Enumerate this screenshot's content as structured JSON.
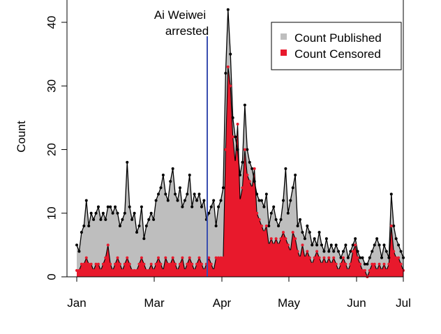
{
  "colors": {
    "published": "#bebebe",
    "censored": "#e8192c",
    "event_line": "#3a4fb0",
    "published_point": "#000000",
    "censored_point": "#e8192c"
  },
  "chart_data": {
    "type": "area",
    "title": "",
    "xlabel": "",
    "ylabel": "Count",
    "x_ticks": [
      "Jan",
      "Mar",
      "Apr",
      "May",
      "Jun",
      "Jul"
    ],
    "y_ticks": [
      "0",
      "10",
      "20",
      "30",
      "40"
    ],
    "ylim": [
      0,
      43
    ],
    "grid": false,
    "legend_position": "top-right",
    "annotation": {
      "text_line1": "Ai Weiwei",
      "text_line2": "arrested",
      "x_tick_fraction": 0.46
    },
    "series": [
      {
        "name": "Count Published",
        "values": [
          5,
          4,
          7,
          8,
          12,
          8,
          10,
          9,
          10,
          11,
          9,
          10,
          9,
          11,
          11,
          10,
          11,
          10,
          8,
          9,
          10,
          18,
          11,
          9,
          10,
          7,
          8,
          11,
          6,
          8,
          9,
          10,
          9,
          12,
          13,
          14,
          16,
          13,
          12,
          15,
          17,
          13,
          12,
          14,
          11,
          12,
          13,
          16,
          11,
          13,
          12,
          13,
          11,
          12,
          9,
          10,
          11,
          12,
          8,
          11,
          12,
          14,
          32,
          42,
          35,
          25,
          22,
          20,
          16,
          18,
          27,
          20,
          18,
          17,
          15,
          13,
          12,
          12,
          11,
          13,
          8,
          10,
          11,
          9,
          8,
          9,
          12,
          17,
          10,
          12,
          14,
          16,
          8,
          9,
          7,
          6,
          8,
          7,
          5,
          6,
          5,
          7,
          5,
          4,
          6,
          4,
          5,
          4,
          5,
          4,
          3,
          4,
          5,
          3,
          4,
          5,
          6,
          4,
          3,
          3,
          2,
          2,
          3,
          4,
          5,
          6,
          5,
          3,
          5,
          4,
          3,
          13,
          8,
          6,
          5,
          4,
          3
        ],
        "points": [
          5,
          4,
          7,
          8,
          12,
          8,
          10,
          9,
          10,
          11,
          9,
          10,
          9,
          11,
          11,
          10,
          11,
          10,
          8,
          9,
          10,
          18,
          11,
          9,
          10,
          7,
          8,
          11,
          6,
          8,
          9,
          10,
          9,
          12,
          13,
          14,
          16,
          13,
          12,
          15,
          17,
          13,
          12,
          14,
          11,
          12,
          13,
          16,
          11,
          13,
          12,
          13,
          11,
          12,
          9,
          10,
          11,
          12,
          8,
          11,
          12,
          14,
          32,
          42,
          35,
          25,
          22,
          20,
          16,
          18,
          27,
          20,
          18,
          17,
          15,
          13,
          12,
          12,
          11,
          13,
          8,
          10,
          11,
          9,
          8,
          9,
          12,
          17,
          10,
          12,
          14,
          16,
          8,
          9,
          7,
          6,
          8,
          7,
          5,
          6,
          5,
          7,
          5,
          4,
          6,
          4,
          5,
          4,
          5,
          4,
          3,
          4,
          5,
          3,
          4,
          5,
          6,
          4,
          3,
          3,
          2,
          2,
          3,
          4,
          5,
          6,
          5,
          3,
          5,
          4,
          3,
          13,
          8,
          6,
          5,
          4,
          3
        ]
      },
      {
        "name": "Count Censored",
        "values": [
          1,
          1,
          2,
          2,
          3,
          2,
          2,
          1,
          2,
          2,
          1,
          2,
          3,
          5,
          2,
          1,
          2,
          3,
          2,
          1,
          2,
          3,
          2,
          1,
          1,
          1,
          2,
          3,
          2,
          1,
          1,
          2,
          1,
          2,
          3,
          2,
          1,
          3,
          2,
          2,
          3,
          2,
          1,
          2,
          3,
          1,
          2,
          3,
          2,
          1,
          2,
          3,
          2,
          1,
          2,
          3,
          2,
          1,
          3,
          3,
          3,
          3,
          20,
          33,
          30,
          22,
          18,
          24,
          12,
          14,
          20,
          16,
          15,
          14,
          17,
          10,
          9,
          8,
          7,
          8,
          5,
          6,
          5,
          6,
          5,
          6,
          7,
          6,
          5,
          4,
          7,
          6,
          4,
          3,
          5,
          3,
          4,
          3,
          2,
          3,
          4,
          3,
          2,
          3,
          2,
          3,
          2,
          3,
          2,
          1,
          2,
          3,
          2,
          1,
          2,
          4,
          5,
          3,
          2,
          1,
          1,
          0,
          1,
          2,
          2,
          1,
          2,
          1,
          2,
          1,
          2,
          8,
          4,
          3,
          3,
          2,
          1
        ],
        "points": [
          1,
          1,
          2,
          2,
          3,
          2,
          2,
          1,
          2,
          2,
          1,
          2,
          3,
          5,
          2,
          1,
          2,
          3,
          2,
          1,
          2,
          3,
          2,
          1,
          1,
          1,
          2,
          3,
          2,
          1,
          1,
          2,
          1,
          2,
          3,
          2,
          1,
          3,
          2,
          2,
          3,
          2,
          1,
          2,
          3,
          1,
          2,
          3,
          2,
          1,
          2,
          3,
          2,
          1,
          2,
          3,
          2,
          1,
          3,
          3,
          3,
          3,
          20,
          33,
          30,
          22,
          18,
          24,
          12,
          14,
          20,
          16,
          15,
          14,
          17,
          10,
          9,
          8,
          7,
          8,
          5,
          6,
          5,
          6,
          5,
          6,
          7,
          6,
          5,
          4,
          7,
          6,
          4,
          3,
          5,
          3,
          4,
          3,
          2,
          3,
          4,
          3,
          2,
          3,
          2,
          3,
          2,
          3,
          2,
          1,
          2,
          3,
          2,
          1,
          2,
          4,
          5,
          3,
          2,
          1,
          1,
          0,
          1,
          2,
          2,
          1,
          2,
          1,
          2,
          1,
          2,
          8,
          4,
          3,
          3,
          2,
          1
        ]
      }
    ]
  }
}
